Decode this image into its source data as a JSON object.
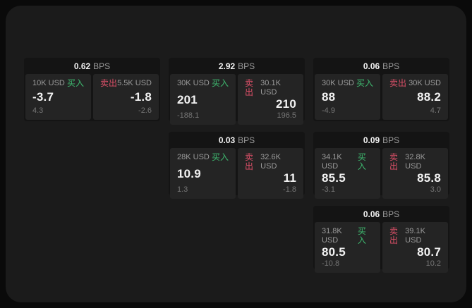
{
  "labels": {
    "bps": "BPS",
    "buy": "买入",
    "sell": "卖出"
  },
  "colors": {
    "outer-bg": "#0a0a0a",
    "surface-bg": "#1b1b1b",
    "card-bg": "#141414",
    "panel-bg": "#242424",
    "buy-green": "#3eb86f",
    "sell-red": "#dd5068",
    "value-text": "#f2f2f2",
    "muted-text": "#9b9b9b",
    "sub-text": "#757575"
  },
  "cards": [
    {
      "bps": "0.62",
      "buy": {
        "amount": "10K USD",
        "value": "-3.7",
        "sub": "4.3"
      },
      "sell": {
        "amount": "5.5K USD",
        "value": "-1.8",
        "sub": "-2.6"
      }
    },
    {
      "bps": "2.92",
      "buy": {
        "amount": "30K USD",
        "value": "201",
        "sub": "-188.1"
      },
      "sell": {
        "amount": "30.1K USD",
        "value": "210",
        "sub": "196.5"
      }
    },
    {
      "bps": "0.06",
      "buy": {
        "amount": "30K USD",
        "value": "88",
        "sub": "-4.9"
      },
      "sell": {
        "amount": "30K USD",
        "value": "88.2",
        "sub": "4.7"
      }
    },
    {
      "bps": "0.03",
      "buy": {
        "amount": "28K USD",
        "value": "10.9",
        "sub": "1.3"
      },
      "sell": {
        "amount": "32.6K USD",
        "value": "11",
        "sub": "-1.8"
      }
    },
    {
      "bps": "0.09",
      "buy": {
        "amount": "34.1K USD",
        "value": "85.5",
        "sub": "-3.1"
      },
      "sell": {
        "amount": "32.8K USD",
        "value": "85.8",
        "sub": "3.0"
      }
    },
    {
      "bps": "0.06",
      "buy": {
        "amount": "31.8K USD",
        "value": "80.5",
        "sub": "-10.8"
      },
      "sell": {
        "amount": "39.1K USD",
        "value": "80.7",
        "sub": "10.2"
      }
    }
  ]
}
